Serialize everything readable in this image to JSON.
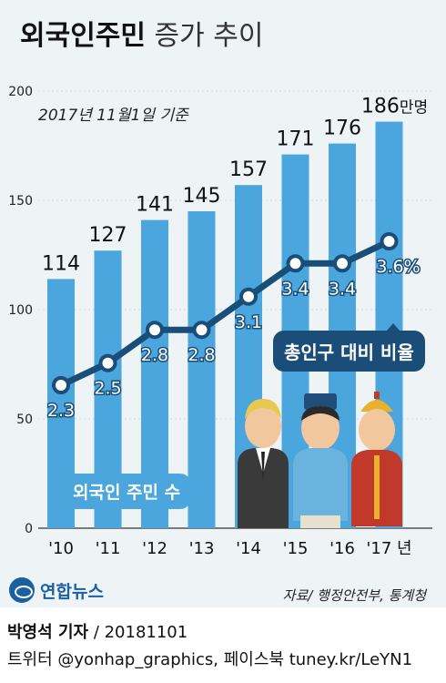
{
  "header": {
    "title_bold": "외국인주민",
    "title_light": "증가 추이"
  },
  "note": "2017년 11월1일 기준",
  "chart_data": {
    "type": "bar",
    "categories": [
      "'10",
      "'11",
      "'12",
      "'13",
      "'14",
      "'15",
      "'16",
      "'17"
    ],
    "year_suffix": "년",
    "ylim": [
      0,
      200
    ],
    "yticks": [
      0,
      50,
      100,
      150,
      200
    ],
    "series": [
      {
        "name": "외국인 주민 수",
        "values": [
          114,
          127,
          141,
          145,
          157,
          171,
          176,
          186
        ],
        "unit_last": "만명",
        "color": "#4aa6dc"
      },
      {
        "name": "총인구 대비 비율",
        "values": [
          2.3,
          2.5,
          2.8,
          2.8,
          3.1,
          3.4,
          3.4,
          3.6
        ],
        "unit_last": "%",
        "color": "#1a4e78"
      }
    ],
    "line_scale_note": "ratio line drawn on secondary scale"
  },
  "labels": {
    "ratio_badge": "총인구 대비 비율",
    "count_badge": "외국인 주민 수"
  },
  "source": "자료/ 행정안전부, 통계청",
  "logo": "연합뉴스",
  "credits": {
    "name": "박영석 기자",
    "date": "/ 20181101",
    "line2": "트위터 @yonhap_graphics, 페이스북 tuney.kr/LeYN1"
  }
}
